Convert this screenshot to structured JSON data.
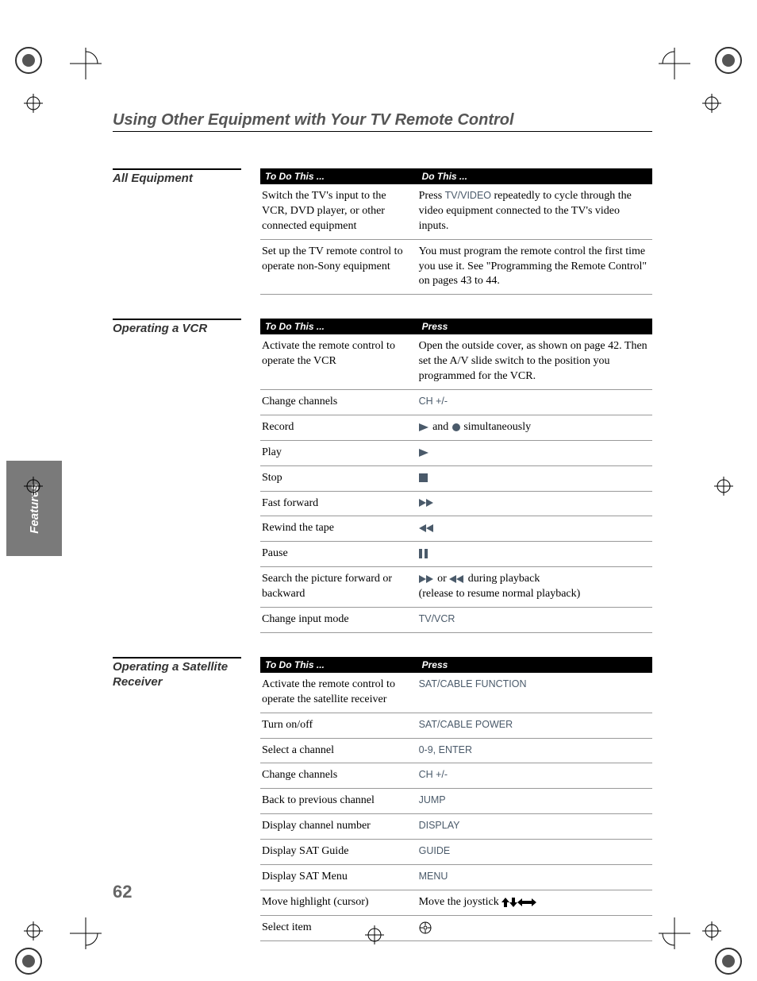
{
  "main_title": "Using Other Equipment with Your TV Remote Control",
  "features_tab": "Features",
  "page_number": "62",
  "sections": [
    {
      "label": "All Equipment",
      "header_col1": "To Do This ...",
      "header_col2": "Do This ...",
      "rows": [
        {
          "c1": "Switch the TV's input to the VCR, DVD player, or other connected equipment",
          "c2_prefix": "Press ",
          "c2_btn": "TV/VIDEO",
          "c2_suffix": " repeatedly to cycle through the video equipment connected to the TV's video inputs."
        },
        {
          "c1": "Set up the TV remote control to operate non-Sony equipment",
          "c2": "You must program the remote control the first time you use it. See \"Programming the Remote Control\" on pages 43 to 44."
        }
      ]
    },
    {
      "label": "Operating a VCR",
      "header_col1": "To Do This ...",
      "header_col2": "Press",
      "rows": [
        {
          "c1": "Activate the remote control to operate the VCR",
          "c2": "Open the outside cover, as shown on page 42. Then set the A/V slide switch to the position you programmed for the VCR."
        },
        {
          "c1": "Change channels",
          "c2_btn": "CH +/-"
        },
        {
          "c1": "Record",
          "c2_icons": [
            "play",
            "rec"
          ],
          "c2_text": " and ",
          "c2_suffix": " simultaneously"
        },
        {
          "c1": "Play",
          "c2_icons": [
            "play"
          ]
        },
        {
          "c1": "Stop",
          "c2_icons": [
            "stop"
          ]
        },
        {
          "c1": "Fast forward",
          "c2_icons": [
            "ff"
          ]
        },
        {
          "c1": "Rewind the tape",
          "c2_icons": [
            "rew"
          ]
        },
        {
          "c1": "Pause",
          "c2_icons": [
            "pause"
          ]
        },
        {
          "c1": "Search the picture forward or backward",
          "c2_icons": [
            "ff"
          ],
          "c2_text": " or ",
          "c2_icons2": [
            "rew"
          ],
          "c2_suffix": " during playback",
          "c2_line2": "(release to resume normal playback)"
        },
        {
          "c1": "Change input mode",
          "c2_btn": "TV/VCR"
        }
      ]
    },
    {
      "label": "Operating a Satellite Receiver",
      "header_col1": "To Do This ...",
      "header_col2": "Press",
      "rows": [
        {
          "c1": "Activate the remote control to operate the satellite receiver",
          "c2_btn": "SAT/CABLE FUNCTION"
        },
        {
          "c1": "Turn on/off",
          "c2_btn": "SAT/CABLE POWER"
        },
        {
          "c1": "Select a channel",
          "c2_btn": "0-9, ENTER"
        },
        {
          "c1": "Change channels",
          "c2_btn": "CH +/-"
        },
        {
          "c1": "Back to previous channel",
          "c2_btn": "JUMP"
        },
        {
          "c1": "Display channel number",
          "c2_btn": "DISPLAY"
        },
        {
          "c1": "Display SAT Guide",
          "c2_btn": "GUIDE"
        },
        {
          "c1": "Display SAT Menu",
          "c2_btn": "MENU"
        },
        {
          "c1": "Move highlight (cursor)",
          "c2": "Move the joystick ",
          "c2_icons": [
            "up",
            "down",
            "left",
            "right"
          ]
        },
        {
          "c1": "Select item",
          "c2_icons": [
            "enter"
          ]
        }
      ]
    }
  ]
}
